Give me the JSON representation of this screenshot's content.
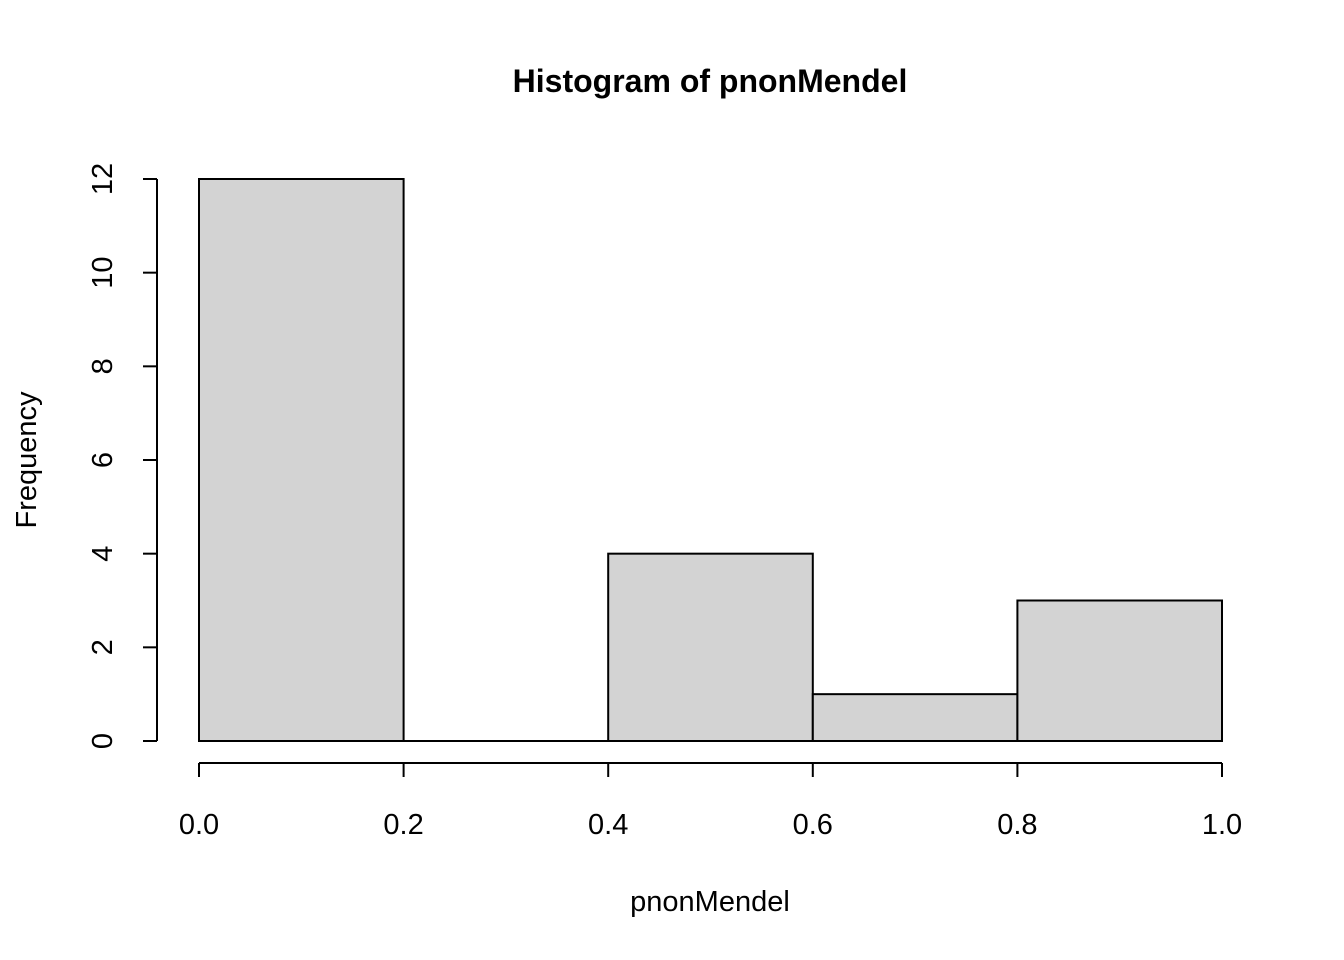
{
  "chart_data": {
    "type": "bar",
    "title": "Histogram of pnonMendel",
    "xlabel": "pnonMendel",
    "ylabel": "Frequency",
    "bins": [
      {
        "from": 0.0,
        "to": 0.2,
        "value": 12
      },
      {
        "from": 0.2,
        "to": 0.4,
        "value": 0
      },
      {
        "from": 0.4,
        "to": 0.6,
        "value": 4
      },
      {
        "from": 0.6,
        "to": 0.8,
        "value": 1
      },
      {
        "from": 0.8,
        "to": 1.0,
        "value": 3
      }
    ],
    "xlim": [
      0.0,
      1.0
    ],
    "ylim": [
      0,
      12
    ],
    "x_ticks": [
      "0.0",
      "0.2",
      "0.4",
      "0.6",
      "0.8",
      "1.0"
    ],
    "y_ticks": [
      "0",
      "2",
      "4",
      "6",
      "8",
      "10",
      "12"
    ],
    "bar_color": "#d3d3d3",
    "edge_color": "#000000",
    "grid": false,
    "legend": "none"
  }
}
